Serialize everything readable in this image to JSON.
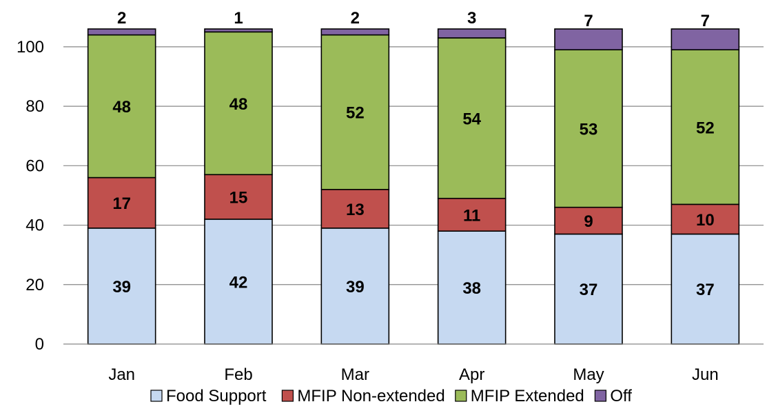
{
  "chart_data": {
    "type": "bar",
    "stacked": true,
    "categories": [
      "Jan",
      "Feb",
      "Mar",
      "Apr",
      "May",
      "Jun"
    ],
    "series": [
      {
        "name": "Food Support",
        "color": "#c6d9f1",
        "values": [
          39,
          42,
          39,
          38,
          37,
          37
        ]
      },
      {
        "name": "MFIP Non-extended",
        "color": "#c0504d",
        "values": [
          17,
          15,
          13,
          11,
          9,
          10
        ]
      },
      {
        "name": "MFIP Extended",
        "color": "#9bbb59",
        "values": [
          48,
          48,
          52,
          54,
          53,
          52
        ]
      },
      {
        "name": "Off",
        "color": "#8064a2",
        "values": [
          2,
          1,
          2,
          3,
          7,
          7
        ]
      }
    ],
    "yticks": [
      "0",
      "20",
      "40",
      "60",
      "80",
      "100"
    ],
    "ylim": [
      0,
      106
    ],
    "grid": true,
    "legend": "bottom",
    "title": "",
    "xlabel": "",
    "ylabel": ""
  }
}
